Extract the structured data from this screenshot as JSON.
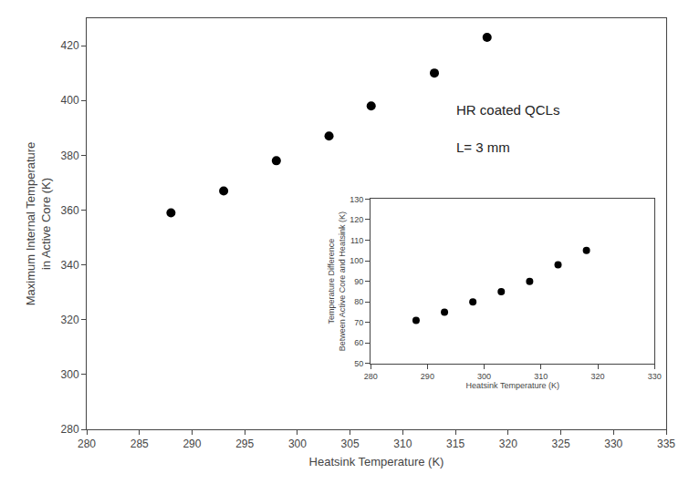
{
  "chart_data": [
    {
      "type": "scatter",
      "x": [
        288,
        293,
        298,
        303,
        307,
        313,
        318
      ],
      "values": [
        359,
        367,
        378,
        387,
        398,
        410,
        423
      ],
      "color": "black",
      "xlabel": "Heatsink Temperature (K)",
      "ylabel": "Maximum Internal Temperature\nin Active Core (K)",
      "xlim": [
        280,
        335
      ],
      "ylim": [
        280,
        430
      ],
      "xticks": [
        280,
        285,
        290,
        295,
        300,
        305,
        310,
        315,
        320,
        325,
        330,
        335
      ],
      "yticks": [
        280,
        300,
        320,
        340,
        360,
        380,
        400,
        420
      ],
      "annotations": [
        "HR coated QCLs",
        "L= 3 mm"
      ],
      "grid": false
    },
    {
      "type": "scatter",
      "x": [
        288,
        293,
        298,
        303,
        308,
        313,
        318
      ],
      "values": [
        71,
        75,
        80,
        85,
        90,
        98,
        105
      ],
      "color": "black",
      "xlabel": "Heatsink Temperature (K)",
      "ylabel": "Temperature Difference\nBetween Active Core and Heatsink (K)",
      "xlim": [
        280,
        330
      ],
      "ylim": [
        50,
        130
      ],
      "xticks": [
        280,
        290,
        300,
        310,
        320,
        330
      ],
      "yticks": [
        50,
        60,
        70,
        80,
        90,
        100,
        110,
        120,
        130
      ],
      "grid": false
    }
  ]
}
